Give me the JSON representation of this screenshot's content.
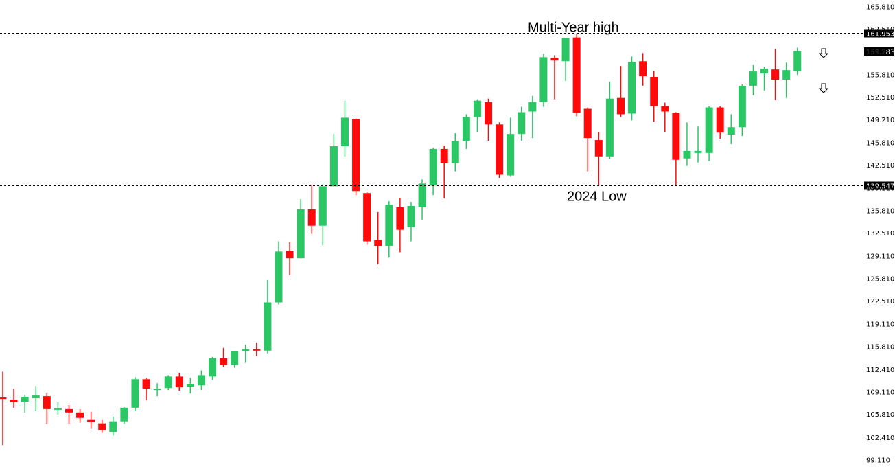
{
  "chart_data": {
    "type": "candlestick",
    "title": "",
    "xlabel": "",
    "ylabel": "",
    "ylim": [
      99.11,
      165.81
    ],
    "grid": false,
    "colors": {
      "up": "#2ac764",
      "down": "#ff0a0a",
      "line": "#000000",
      "tag_bg": "#000000",
      "tag_text": "#ffffff"
    },
    "y_ticks": [
      "165.810",
      "162.510",
      "159.210",
      "155.810",
      "152.510",
      "149.210",
      "145.810",
      "142.510",
      "139.110",
      "135.810",
      "132.510",
      "129.110",
      "125.810",
      "122.510",
      "119.110",
      "115.810",
      "112.410",
      "109.110",
      "105.810",
      "102.410",
      "99.110"
    ],
    "levels": [
      {
        "name": "Multi-Year high",
        "value": 161.953,
        "tag": "161.953",
        "label": "Multi-Year high"
      },
      {
        "name": "2024 Low",
        "value": 139.547,
        "tag": "139.547",
        "label": "2024 Low"
      }
    ],
    "current_price_tag": "159.283",
    "arrows": [
      "down-arrow",
      "down-arrow"
    ],
    "candles": [
      {
        "o": 108.3,
        "h": 112.1,
        "l": 101.3,
        "c": 108.1
      },
      {
        "o": 108.0,
        "h": 109.6,
        "l": 106.8,
        "c": 107.6
      },
      {
        "o": 107.7,
        "h": 108.7,
        "l": 106.1,
        "c": 108.4
      },
      {
        "o": 108.2,
        "h": 110.0,
        "l": 106.3,
        "c": 108.6
      },
      {
        "o": 108.5,
        "h": 108.9,
        "l": 104.4,
        "c": 106.6
      },
      {
        "o": 106.5,
        "h": 107.6,
        "l": 105.8,
        "c": 106.7
      },
      {
        "o": 106.6,
        "h": 107.2,
        "l": 104.4,
        "c": 106.1
      },
      {
        "o": 106.1,
        "h": 106.6,
        "l": 104.6,
        "c": 105.3
      },
      {
        "o": 105.0,
        "h": 106.2,
        "l": 103.7,
        "c": 104.7
      },
      {
        "o": 104.5,
        "h": 105.0,
        "l": 103.1,
        "c": 103.5
      },
      {
        "o": 103.2,
        "h": 105.5,
        "l": 102.7,
        "c": 104.8
      },
      {
        "o": 104.8,
        "h": 106.9,
        "l": 104.4,
        "c": 106.8
      },
      {
        "o": 106.8,
        "h": 111.3,
        "l": 106.3,
        "c": 111.0
      },
      {
        "o": 111.0,
        "h": 111.2,
        "l": 107.9,
        "c": 109.6
      },
      {
        "o": 109.4,
        "h": 110.4,
        "l": 108.5,
        "c": 109.6
      },
      {
        "o": 109.7,
        "h": 111.6,
        "l": 109.4,
        "c": 111.4
      },
      {
        "o": 111.4,
        "h": 111.9,
        "l": 109.3,
        "c": 109.8
      },
      {
        "o": 109.9,
        "h": 111.2,
        "l": 108.9,
        "c": 110.3
      },
      {
        "o": 110.1,
        "h": 112.3,
        "l": 109.4,
        "c": 111.6
      },
      {
        "o": 111.4,
        "h": 114.3,
        "l": 110.9,
        "c": 114.1
      },
      {
        "o": 114.1,
        "h": 115.6,
        "l": 112.8,
        "c": 113.1
      },
      {
        "o": 113.1,
        "h": 115.1,
        "l": 112.7,
        "c": 115.1
      },
      {
        "o": 115.1,
        "h": 116.1,
        "l": 113.4,
        "c": 115.4
      },
      {
        "o": 115.4,
        "h": 116.4,
        "l": 114.4,
        "c": 115.2
      },
      {
        "o": 115.2,
        "h": 125.6,
        "l": 114.8,
        "c": 122.3
      },
      {
        "o": 122.3,
        "h": 131.3,
        "l": 122.0,
        "c": 129.8
      },
      {
        "o": 129.9,
        "h": 131.2,
        "l": 126.3,
        "c": 128.8
      },
      {
        "o": 128.8,
        "h": 137.5,
        "l": 128.8,
        "c": 136.0
      },
      {
        "o": 136.0,
        "h": 139.6,
        "l": 132.4,
        "c": 133.6
      },
      {
        "o": 133.6,
        "h": 139.7,
        "l": 130.7,
        "c": 139.4
      },
      {
        "o": 139.4,
        "h": 147.1,
        "l": 139.4,
        "c": 145.3
      },
      {
        "o": 145.3,
        "h": 152.0,
        "l": 143.8,
        "c": 149.5
      },
      {
        "o": 149.3,
        "h": 149.4,
        "l": 138.1,
        "c": 138.7
      },
      {
        "o": 138.4,
        "h": 138.6,
        "l": 130.8,
        "c": 131.3
      },
      {
        "o": 131.5,
        "h": 135.6,
        "l": 127.9,
        "c": 130.6
      },
      {
        "o": 130.6,
        "h": 137.2,
        "l": 128.9,
        "c": 136.7
      },
      {
        "o": 136.3,
        "h": 137.7,
        "l": 129.7,
        "c": 133.0
      },
      {
        "o": 133.4,
        "h": 137.1,
        "l": 131.3,
        "c": 136.5
      },
      {
        "o": 136.3,
        "h": 140.4,
        "l": 134.5,
        "c": 139.8
      },
      {
        "o": 139.5,
        "h": 145.1,
        "l": 138.1,
        "c": 144.9
      },
      {
        "o": 144.9,
        "h": 145.4,
        "l": 137.6,
        "c": 142.8
      },
      {
        "o": 142.8,
        "h": 147.2,
        "l": 141.6,
        "c": 146.1
      },
      {
        "o": 146.1,
        "h": 150.0,
        "l": 144.9,
        "c": 149.6
      },
      {
        "o": 149.6,
        "h": 152.2,
        "l": 147.4,
        "c": 152.0
      },
      {
        "o": 151.8,
        "h": 152.3,
        "l": 146.1,
        "c": 148.5
      },
      {
        "o": 148.5,
        "h": 148.8,
        "l": 140.6,
        "c": 141.1
      },
      {
        "o": 141.0,
        "h": 149.5,
        "l": 140.8,
        "c": 147.1
      },
      {
        "o": 147.1,
        "h": 151.1,
        "l": 146.1,
        "c": 150.3
      },
      {
        "o": 150.4,
        "h": 152.7,
        "l": 146.5,
        "c": 151.8
      },
      {
        "o": 151.8,
        "h": 158.9,
        "l": 151.1,
        "c": 158.4
      },
      {
        "o": 158.3,
        "h": 158.7,
        "l": 152.2,
        "c": 157.9
      },
      {
        "o": 157.8,
        "h": 161.2,
        "l": 154.9,
        "c": 161.2
      },
      {
        "o": 161.3,
        "h": 161.9,
        "l": 149.7,
        "c": 150.2
      },
      {
        "o": 150.8,
        "h": 151.0,
        "l": 141.6,
        "c": 146.5
      },
      {
        "o": 146.2,
        "h": 147.4,
        "l": 139.6,
        "c": 143.8
      },
      {
        "o": 143.8,
        "h": 154.8,
        "l": 143.4,
        "c": 152.3
      },
      {
        "o": 152.4,
        "h": 157.1,
        "l": 149.6,
        "c": 150.0
      },
      {
        "o": 150.1,
        "h": 158.5,
        "l": 149.1,
        "c": 157.7
      },
      {
        "o": 157.8,
        "h": 159.0,
        "l": 154.2,
        "c": 155.6
      },
      {
        "o": 155.5,
        "h": 156.4,
        "l": 148.9,
        "c": 151.2
      },
      {
        "o": 151.2,
        "h": 151.7,
        "l": 147.4,
        "c": 150.4
      },
      {
        "o": 150.2,
        "h": 150.3,
        "l": 139.6,
        "c": 143.3
      },
      {
        "o": 143.5,
        "h": 148.8,
        "l": 142.4,
        "c": 144.6
      },
      {
        "o": 144.3,
        "h": 148.2,
        "l": 142.9,
        "c": 144.6
      },
      {
        "o": 144.3,
        "h": 151.2,
        "l": 143.1,
        "c": 151.0
      },
      {
        "o": 151.0,
        "h": 151.2,
        "l": 146.4,
        "c": 147.3
      },
      {
        "o": 147.0,
        "h": 150.0,
        "l": 145.6,
        "c": 148.1
      },
      {
        "o": 148.1,
        "h": 154.4,
        "l": 146.8,
        "c": 154.2
      },
      {
        "o": 154.2,
        "h": 157.3,
        "l": 152.8,
        "c": 156.3
      },
      {
        "o": 156.0,
        "h": 157.0,
        "l": 153.5,
        "c": 156.7
      },
      {
        "o": 156.6,
        "h": 159.6,
        "l": 152.1,
        "c": 155.1
      },
      {
        "o": 155.1,
        "h": 157.6,
        "l": 152.4,
        "c": 156.5
      },
      {
        "o": 156.3,
        "h": 159.8,
        "l": 155.8,
        "c": 159.3
      }
    ]
  }
}
